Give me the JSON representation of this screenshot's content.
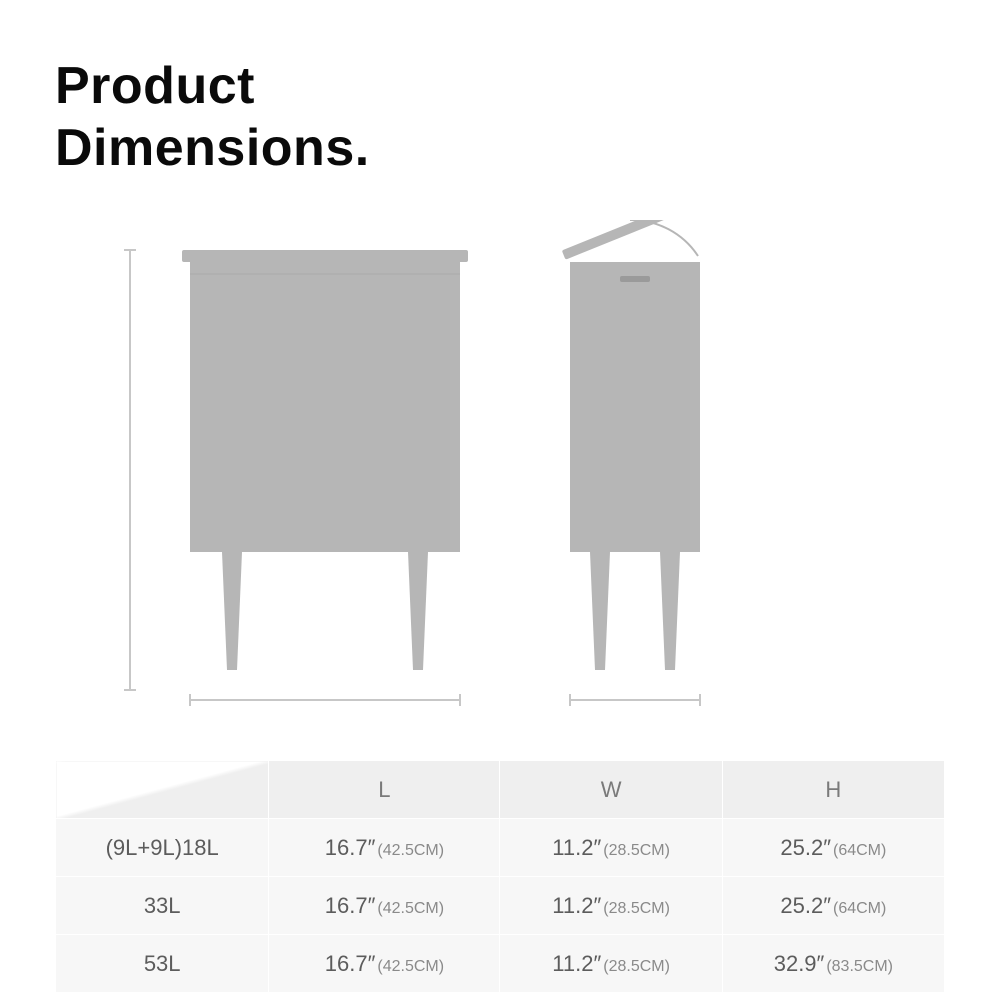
{
  "title": "Product\nDimensions.",
  "diagram": {
    "fill": "#b6b6b6",
    "guide": "#c7c7c7",
    "body_w": 270,
    "body_h": 280,
    "side_w": 130,
    "leg_h": 100
  },
  "table": {
    "columns": [
      "L",
      "W",
      "H"
    ],
    "rows": [
      {
        "label": "(9L+9L)18L",
        "L": {
          "inch": "16.7″",
          "cm": "(42.5CM)"
        },
        "W": {
          "inch": "11.2″",
          "cm": "(28.5CM)"
        },
        "H": {
          "inch": "25.2″",
          "cm": "(64CM)"
        }
      },
      {
        "label": "33L",
        "L": {
          "inch": "16.7″",
          "cm": "(42.5CM)"
        },
        "W": {
          "inch": "11.2″",
          "cm": "(28.5CM)"
        },
        "H": {
          "inch": "25.2″",
          "cm": "(64CM)"
        }
      },
      {
        "label": "53L",
        "L": {
          "inch": "16.7″",
          "cm": "(42.5CM)"
        },
        "W": {
          "inch": "11.2″",
          "cm": "(28.5CM)"
        },
        "H": {
          "inch": "32.9″",
          "cm": "(83.5CM)"
        }
      }
    ]
  }
}
